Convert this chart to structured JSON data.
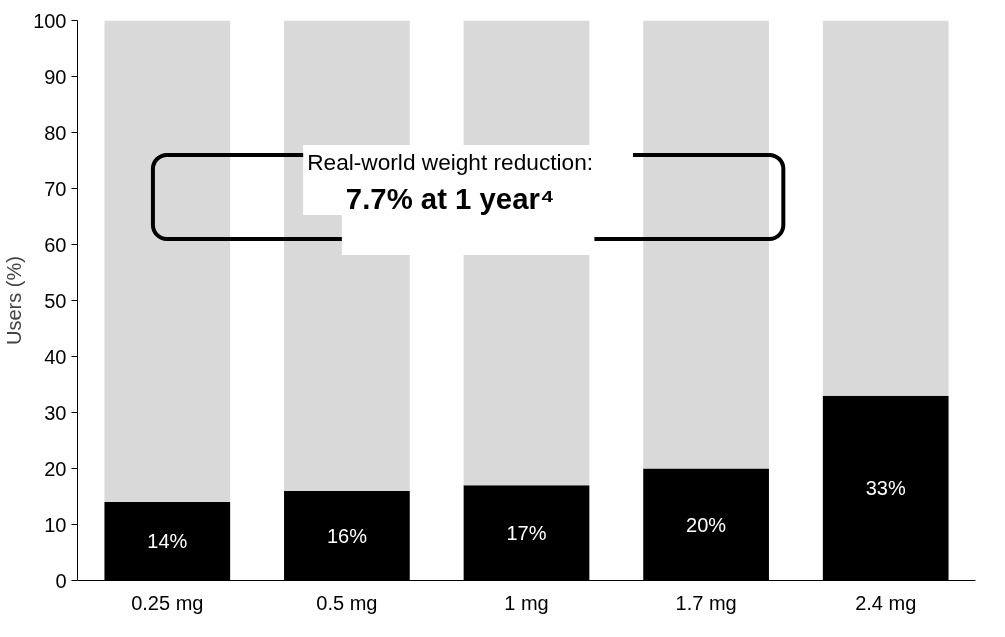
{
  "chart_data": {
    "type": "bar",
    "stacked": true,
    "categories": [
      "0.25 mg",
      "0.5 mg",
      "1 mg",
      "1.7 mg",
      "2.4 mg"
    ],
    "ylabel": "Users (%)",
    "ylim": [
      0,
      100
    ],
    "yticks": [
      0,
      10,
      20,
      30,
      40,
      50,
      60,
      70,
      80,
      90,
      100
    ],
    "grid": false,
    "series": [
      {
        "color": "#000000",
        "values": [
          14,
          16,
          17,
          20,
          33
        ],
        "value_labels": [
          "14%",
          "16%",
          "17%",
          "20%",
          "33%"
        ]
      },
      {
        "color": "#d9d9d9",
        "values": [
          86,
          84,
          83,
          80,
          67
        ]
      }
    ],
    "annotations": [
      "Real-world weight reduction:",
      "7.7% at 1 year⁴"
    ]
  }
}
